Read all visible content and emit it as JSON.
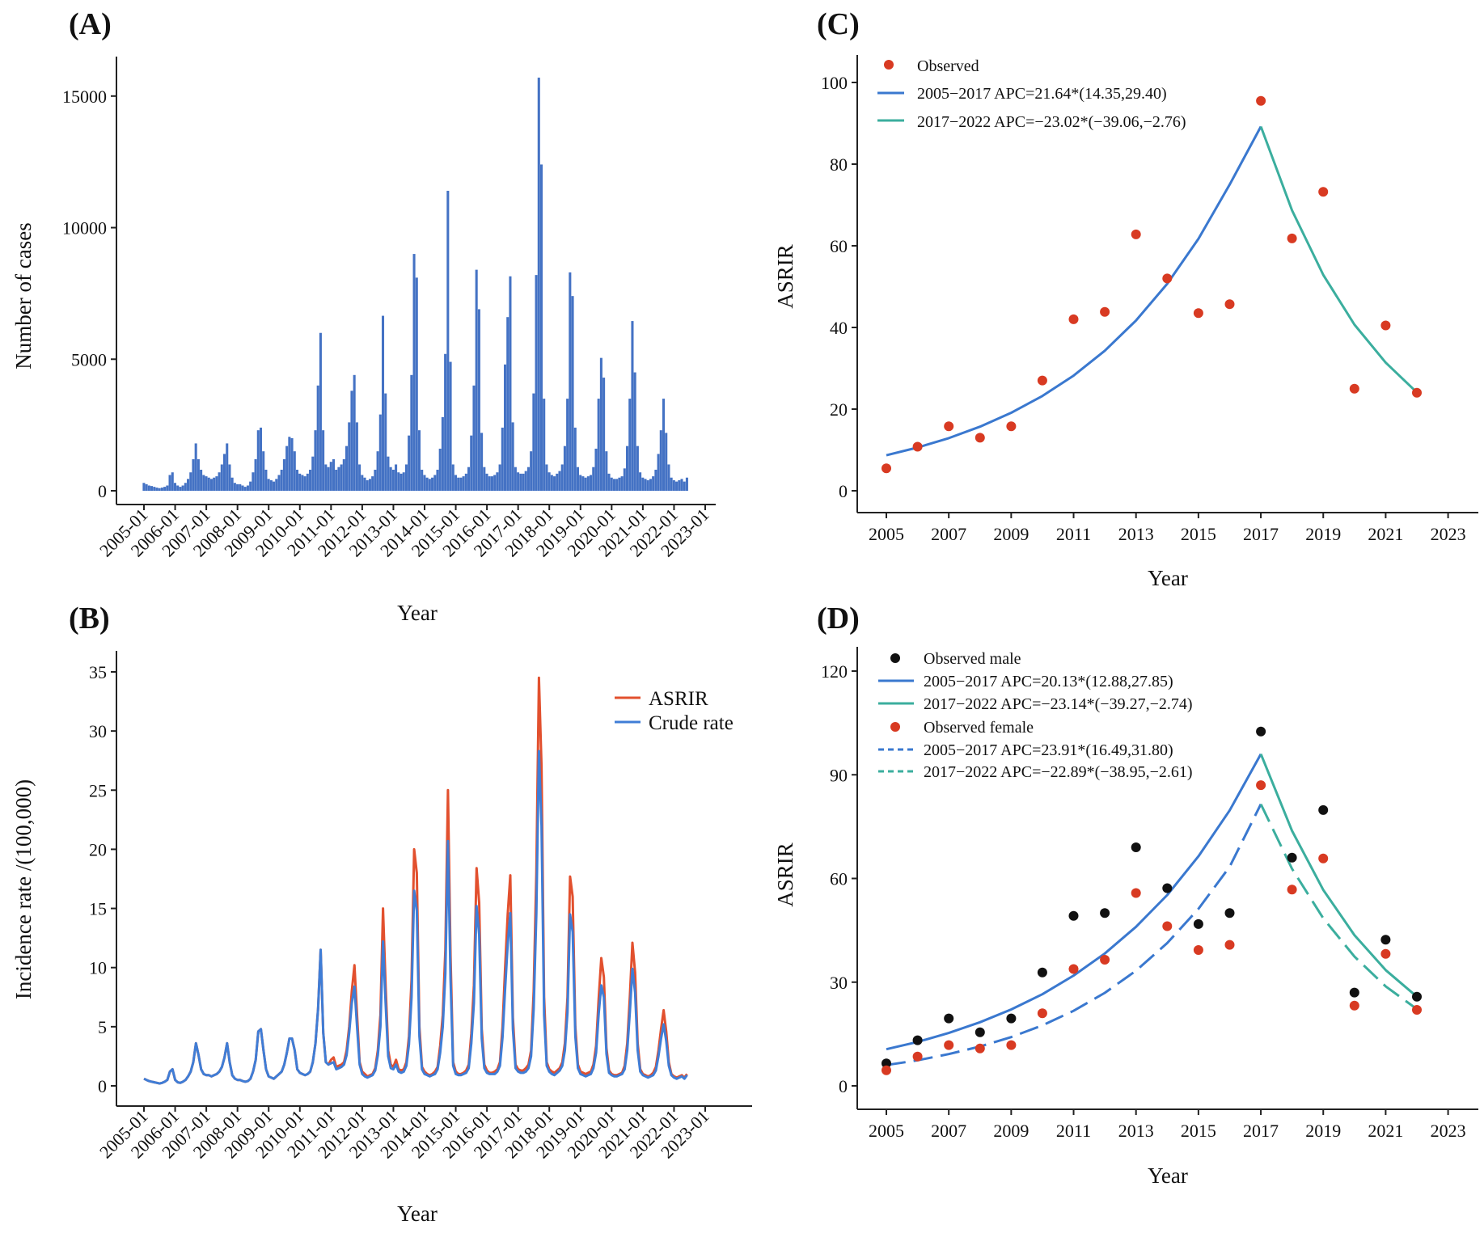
{
  "colors": {
    "bar": "#4472C4",
    "asrir_line": "#E2502E",
    "crude_line": "#3F7DD6",
    "blue_fit": "#3A78CF",
    "teal_fit": "#3BAE9E",
    "observed_red": "#D83A22",
    "observed_black": "#111111",
    "axis": "#222222"
  },
  "panels": {
    "A": {
      "label": "(A)"
    },
    "B": {
      "label": "(B)"
    },
    "C": {
      "label": "(C)"
    },
    "D": {
      "label": "(D)"
    }
  },
  "chart_data": [
    {
      "panel": "A",
      "type": "bar",
      "xlabel": "Year",
      "ylabel": "Number of cases",
      "ylim": [
        0,
        16500
      ],
      "yticks": [
        0,
        5000,
        10000,
        15000
      ],
      "xtick_labels": [
        "2005-01",
        "2006-01",
        "2007-01",
        "2008-01",
        "2009-01",
        "2010-01",
        "2011-01",
        "2012-01",
        "2013-01",
        "2014-01",
        "2015-01",
        "2016-01",
        "2017-01",
        "2018-01",
        "2019-01",
        "2020-01",
        "2021-01",
        "2022-01",
        "2023-01"
      ],
      "start_month": "2005-01",
      "monthly_values": [
        300,
        250,
        200,
        180,
        150,
        120,
        100,
        120,
        150,
        200,
        600,
        700,
        300,
        200,
        150,
        200,
        300,
        450,
        700,
        1200,
        1800,
        1200,
        800,
        600,
        550,
        500,
        450,
        500,
        550,
        700,
        1000,
        1400,
        1800,
        1000,
        500,
        300,
        250,
        250,
        200,
        150,
        200,
        350,
        700,
        1200,
        2300,
        2400,
        1500,
        800,
        450,
        400,
        350,
        450,
        600,
        800,
        1200,
        1700,
        2050,
        2000,
        1500,
        800,
        650,
        600,
        550,
        650,
        800,
        1300,
        2300,
        4000,
        6000,
        2300,
        1000,
        900,
        1100,
        1200,
        800,
        900,
        1000,
        1200,
        1700,
        2600,
        3800,
        4400,
        2600,
        1000,
        600,
        500,
        400,
        450,
        550,
        800,
        1500,
        2900,
        6650,
        3700,
        1300,
        900,
        800,
        1000,
        700,
        650,
        700,
        1000,
        2100,
        4400,
        9000,
        8100,
        2300,
        800,
        600,
        500,
        450,
        500,
        600,
        800,
        1600,
        2800,
        5200,
        11400,
        4900,
        1000,
        600,
        500,
        500,
        550,
        650,
        900,
        2100,
        4000,
        8400,
        6900,
        2200,
        900,
        650,
        550,
        550,
        600,
        700,
        1000,
        2400,
        4800,
        6600,
        8150,
        2600,
        900,
        700,
        650,
        650,
        750,
        900,
        1500,
        3700,
        8200,
        15700,
        12400,
        3500,
        1000,
        700,
        600,
        550,
        650,
        750,
        1000,
        1700,
        3500,
        8300,
        7400,
        2400,
        900,
        600,
        550,
        500,
        550,
        600,
        900,
        1600,
        3500,
        5050,
        4300,
        1500,
        650,
        500,
        450,
        450,
        500,
        550,
        850,
        1700,
        3500,
        6450,
        4500,
        1700,
        700,
        500,
        450,
        400,
        450,
        550,
        800,
        1400,
        2300,
        3500,
        2200,
        1000,
        500,
        400,
        350,
        400,
        450,
        350,
        500
      ]
    },
    {
      "panel": "B",
      "type": "line",
      "xlabel": "Year",
      "ylabel": "Incidence rate /(100,000)",
      "ylim": [
        -0.6,
        36.5
      ],
      "yticks": [
        0,
        5,
        10,
        15,
        20,
        25,
        30,
        35
      ],
      "xtick_labels": [
        "2005-01",
        "2006-01",
        "2007-01",
        "2008-01",
        "2009-01",
        "2010-01",
        "2011-01",
        "2012-01",
        "2013-01",
        "2014-01",
        "2015-01",
        "2016-01",
        "2017-01",
        "2018-01",
        "2019-01",
        "2020-01",
        "2021-01",
        "2022-01",
        "2023-01"
      ],
      "legend": [
        "ASRIR",
        "Crude rate"
      ],
      "series": [
        {
          "name": "ASRIR",
          "values": [
            0.6,
            0.5,
            0.4,
            0.35,
            0.3,
            0.25,
            0.2,
            0.25,
            0.35,
            0.5,
            1.2,
            1.4,
            0.5,
            0.3,
            0.25,
            0.35,
            0.5,
            0.8,
            1.2,
            2.0,
            3.6,
            2.6,
            1.4,
            1.0,
            0.9,
            0.9,
            0.8,
            0.9,
            1.0,
            1.2,
            1.6,
            2.4,
            3.6,
            2.0,
            0.9,
            0.6,
            0.5,
            0.5,
            0.4,
            0.35,
            0.4,
            0.6,
            1.2,
            2.2,
            4.6,
            4.8,
            3.0,
            1.4,
            0.8,
            0.7,
            0.6,
            0.8,
            1.0,
            1.2,
            1.8,
            2.8,
            4.0,
            4.0,
            3.0,
            1.4,
            1.1,
            1.0,
            0.9,
            1.0,
            1.2,
            2.0,
            3.6,
            6.5,
            11.5,
            4.5,
            2.0,
            1.8,
            2.2,
            2.4,
            1.6,
            1.7,
            1.8,
            2.0,
            3.0,
            5.0,
            8.0,
            10.2,
            6.0,
            2.0,
            1.2,
            1.0,
            0.8,
            0.9,
            1.0,
            1.5,
            3.0,
            6.0,
            15.0,
            8.5,
            3.0,
            1.8,
            1.6,
            2.2,
            1.4,
            1.3,
            1.4,
            2.0,
            4.2,
            9.0,
            20.0,
            18.0,
            5.0,
            1.6,
            1.2,
            1.0,
            0.9,
            1.0,
            1.2,
            1.6,
            3.4,
            6.0,
            11.5,
            25.0,
            11.0,
            2.0,
            1.2,
            1.0,
            1.0,
            1.1,
            1.3,
            1.8,
            4.4,
            8.5,
            18.4,
            15.5,
            4.8,
            1.8,
            1.3,
            1.1,
            1.1,
            1.2,
            1.4,
            2.0,
            5.0,
            10.0,
            14.5,
            17.8,
            5.8,
            1.8,
            1.4,
            1.3,
            1.3,
            1.5,
            1.8,
            3.0,
            8.0,
            18.0,
            34.5,
            27.0,
            7.5,
            2.0,
            1.4,
            1.2,
            1.1,
            1.3,
            1.5,
            2.0,
            3.6,
            7.5,
            17.7,
            16.0,
            5.0,
            1.8,
            1.2,
            1.1,
            1.0,
            1.1,
            1.2,
            1.8,
            3.4,
            7.4,
            10.8,
            9.2,
            3.2,
            1.3,
            1.0,
            0.9,
            0.9,
            1.0,
            1.1,
            1.7,
            3.6,
            7.5,
            12.1,
            9.6,
            3.6,
            1.4,
            1.0,
            0.9,
            0.8,
            0.9,
            1.1,
            1.6,
            3.0,
            4.8,
            6.4,
            4.6,
            2.0,
            1.0,
            0.8,
            0.7,
            0.8,
            0.9,
            0.7,
            1.0
          ]
        },
        {
          "name": "Crude rate",
          "values": [
            0.6,
            0.5,
            0.4,
            0.35,
            0.3,
            0.25,
            0.2,
            0.25,
            0.35,
            0.5,
            1.2,
            1.4,
            0.5,
            0.3,
            0.25,
            0.35,
            0.5,
            0.8,
            1.2,
            2.0,
            3.6,
            2.6,
            1.4,
            1.0,
            0.9,
            0.9,
            0.8,
            0.9,
            1.0,
            1.2,
            1.6,
            2.4,
            3.6,
            2.0,
            0.9,
            0.6,
            0.5,
            0.5,
            0.4,
            0.35,
            0.4,
            0.6,
            1.2,
            2.2,
            4.6,
            4.8,
            3.0,
            1.4,
            0.8,
            0.7,
            0.6,
            0.8,
            1.0,
            1.2,
            1.8,
            2.8,
            4.0,
            4.0,
            3.0,
            1.4,
            1.1,
            1.0,
            0.9,
            1.0,
            1.2,
            2.0,
            3.6,
            6.5,
            11.5,
            4.5,
            2.0,
            1.8,
            1.9,
            2.0,
            1.4,
            1.5,
            1.6,
            1.8,
            2.6,
            4.5,
            7.0,
            8.4,
            5.0,
            1.8,
            1.0,
            0.8,
            0.7,
            0.8,
            0.9,
            1.3,
            2.6,
            5.0,
            12.2,
            7.0,
            2.5,
            1.5,
            1.4,
            1.8,
            1.2,
            1.1,
            1.2,
            1.7,
            3.5,
            7.5,
            16.5,
            14.8,
            4.2,
            1.4,
            1.0,
            0.9,
            0.8,
            0.9,
            1.0,
            1.4,
            2.8,
            5.0,
            9.5,
            20.7,
            9.0,
            1.7,
            1.0,
            0.9,
            0.9,
            1.0,
            1.1,
            1.5,
            3.6,
            7.0,
            15.2,
            12.8,
            4.0,
            1.5,
            1.1,
            1.0,
            1.0,
            1.0,
            1.2,
            1.7,
            4.1,
            8.2,
            12.0,
            14.6,
            4.8,
            1.5,
            1.2,
            1.1,
            1.1,
            1.2,
            1.5,
            2.5,
            6.5,
            14.5,
            28.3,
            22.0,
            6.0,
            1.7,
            1.2,
            1.0,
            0.9,
            1.1,
            1.3,
            1.7,
            3.0,
            6.2,
            14.5,
            13.0,
            4.2,
            1.5,
            1.0,
            0.9,
            0.8,
            0.9,
            1.0,
            1.5,
            2.8,
            6.1,
            8.5,
            7.5,
            2.7,
            1.1,
            0.9,
            0.8,
            0.8,
            0.9,
            1.0,
            1.4,
            3.0,
            6.2,
            9.9,
            7.9,
            3.0,
            1.2,
            0.9,
            0.8,
            0.7,
            0.8,
            0.9,
            1.3,
            2.5,
            4.0,
            5.2,
            3.8,
            1.7,
            0.9,
            0.7,
            0.6,
            0.7,
            0.8,
            0.6,
            0.9
          ]
        }
      ]
    },
    {
      "panel": "C",
      "type": "scatter",
      "xlabel": "Year",
      "ylabel": "ASRIR",
      "xlim": [
        2004.1,
        2023.9
      ],
      "ylim": [
        -4,
        105
      ],
      "xticks": [
        2005,
        2007,
        2009,
        2011,
        2013,
        2015,
        2017,
        2019,
        2021,
        2023
      ],
      "yticks": [
        0,
        20,
        40,
        60,
        80,
        100
      ],
      "years": [
        2005,
        2006,
        2007,
        2008,
        2009,
        2010,
        2011,
        2012,
        2013,
        2014,
        2015,
        2016,
        2017,
        2018,
        2019,
        2020,
        2021,
        2022
      ],
      "series": [
        {
          "name": "Observed",
          "kind": "points",
          "color_key": "observed_red",
          "values": [
            5.5,
            10.8,
            15.8,
            13.0,
            15.8,
            27.0,
            42.0,
            43.8,
            62.8,
            52.0,
            43.5,
            45.7,
            95.5,
            61.8,
            73.2,
            25.0,
            40.5,
            24.0
          ]
        },
        {
          "name": "2005−2017 APC=21.64*(14.35,29.40)",
          "kind": "line",
          "color_key": "blue_fit",
          "from_year": 2005,
          "values": [
            8.7,
            10.6,
            12.9,
            15.7,
            19.1,
            23.2,
            28.2,
            34.3,
            41.7,
            50.7,
            61.7,
            75.0,
            89.2
          ]
        },
        {
          "name": "2017−2022 APC=−23.02*(−39.06,−2.76)",
          "kind": "line",
          "color_key": "teal_fit",
          "from_year": 2017,
          "values": [
            89.2,
            68.7,
            52.9,
            40.7,
            31.4,
            24.1
          ]
        }
      ]
    },
    {
      "panel": "D",
      "type": "scatter",
      "xlabel": "Year",
      "ylabel": "ASRIR",
      "xlim": [
        2004.1,
        2023.9
      ],
      "ylim": [
        -4,
        126
      ],
      "xticks": [
        2005,
        2007,
        2009,
        2011,
        2013,
        2015,
        2017,
        2019,
        2021,
        2023
      ],
      "yticks": [
        0,
        30,
        60,
        90,
        120
      ],
      "years": [
        2005,
        2006,
        2007,
        2008,
        2009,
        2010,
        2011,
        2012,
        2013,
        2014,
        2015,
        2016,
        2017,
        2018,
        2019,
        2020,
        2021,
        2022
      ],
      "series": [
        {
          "name": "Observed male",
          "kind": "points",
          "color_key": "observed_black",
          "values": [
            6.5,
            13.2,
            19.5,
            15.5,
            19.5,
            32.8,
            49.2,
            50.0,
            69.0,
            57.2,
            46.8,
            50.0,
            102.5,
            66.0,
            79.8,
            27.0,
            42.3,
            25.8
          ]
        },
        {
          "name": "2005−2017 APC=20.13*(12.88,27.85)",
          "kind": "line",
          "dash": false,
          "color_key": "blue_fit",
          "from_year": 2005,
          "values": [
            10.6,
            12.7,
            15.3,
            18.4,
            22.1,
            26.5,
            31.9,
            38.3,
            46.0,
            55.2,
            66.4,
            79.7,
            96.0
          ]
        },
        {
          "name": "2017−2022 APC=−23.14*(−39.27,−2.74)",
          "kind": "line",
          "dash": false,
          "color_key": "teal_fit",
          "from_year": 2017,
          "values": [
            96.0,
            73.8,
            56.7,
            43.6,
            33.5,
            25.8
          ]
        },
        {
          "name": "Observed female",
          "kind": "points",
          "color_key": "observed_red",
          "values": [
            4.5,
            8.5,
            11.8,
            10.8,
            11.8,
            21.0,
            33.8,
            36.5,
            55.8,
            46.2,
            39.3,
            40.8,
            87.0,
            56.8,
            65.8,
            23.2,
            38.2,
            22.0
          ]
        },
        {
          "name": "2005−2017 APC=23.91*(16.49,31.80)",
          "kind": "line",
          "dash": true,
          "color_key": "blue_fit",
          "from_year": 2005,
          "values": [
            6.0,
            7.4,
            9.2,
            11.4,
            14.1,
            17.5,
            21.7,
            26.9,
            33.3,
            41.3,
            51.2,
            63.4,
            81.5
          ]
        },
        {
          "name": "2017−2022 APC=−22.89*(−38.95,−2.61)",
          "kind": "line",
          "dash": true,
          "color_key": "teal_fit",
          "from_year": 2017,
          "values": [
            81.5,
            62.8,
            48.5,
            37.4,
            28.8,
            22.2
          ]
        }
      ]
    }
  ]
}
